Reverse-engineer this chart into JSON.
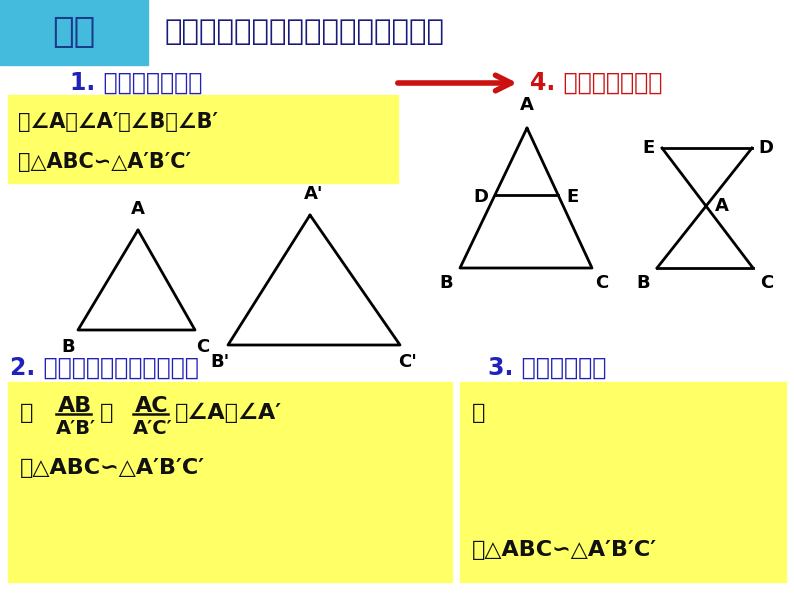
{
  "bg_color": "#ffffff",
  "header_bg": "#44bbdd",
  "header_text": "回顾",
  "header_text_color": "#1a3a8a",
  "title_text": "判定两个三角形相似的方法有哪些？",
  "title_color": "#1a1a7a",
  "item1_text": "1. 找两角对应相等",
  "item1_color": "#2222bb",
  "item4_text": "4. 见平行，想相似",
  "item4_color": "#cc1111",
  "item2_text": "2. 找两边成比例且夹角相等",
  "item2_color": "#2222bb",
  "item3_text": "3. 找三边成比例",
  "item3_color": "#2222bb",
  "yellow_bg": "#ffff66",
  "black": "#111111"
}
